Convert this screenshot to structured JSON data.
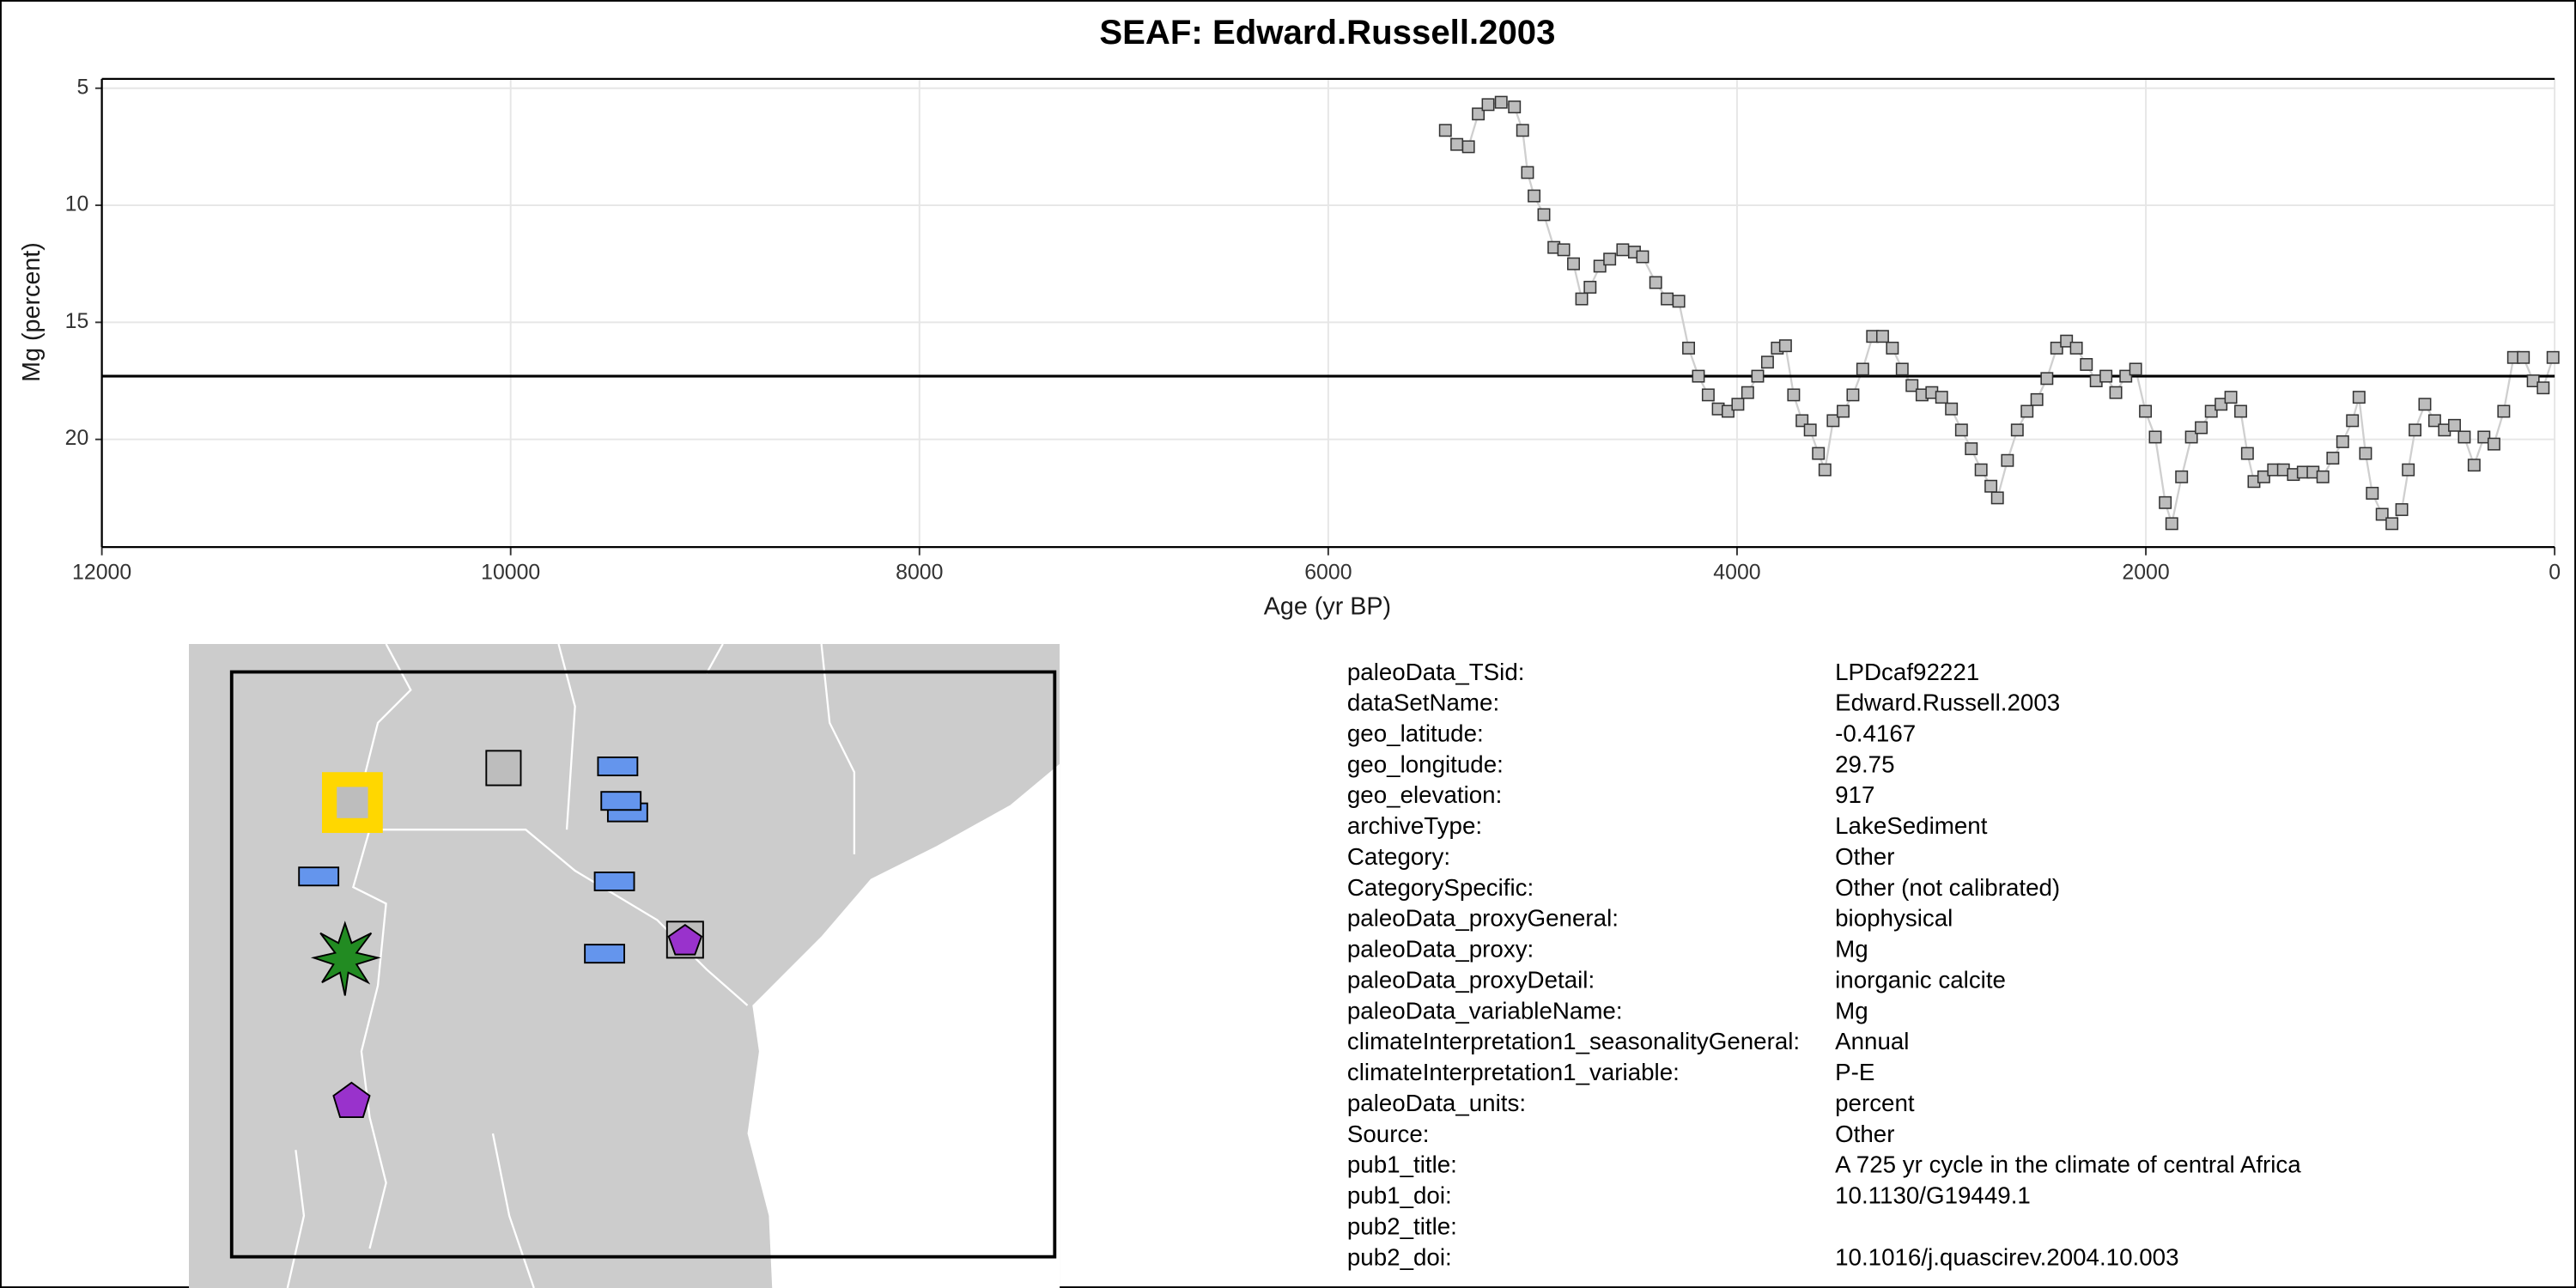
{
  "chart_data": {
    "type": "line",
    "title": "SEAF: Edward.Russell.2003",
    "x_label": "Age (yr BP)",
    "y_label": "Mg (percent)",
    "x": [
      5427,
      5371,
      5314,
      5266,
      5218,
      5154,
      5089,
      5049,
      5025,
      4993,
      4945,
      4896,
      4848,
      4800,
      4760,
      4719,
      4671,
      4623,
      4559,
      4502,
      4462,
      4398,
      4342,
      4285,
      4237,
      4189,
      4141,
      4092,
      4044,
      3996,
      3948,
      3899,
      3851,
      3803,
      3763,
      3723,
      3682,
      3642,
      3602,
      3570,
      3530,
      3481,
      3433,
      3385,
      3337,
      3288,
      3240,
      3192,
      3144,
      3095,
      3047,
      2999,
      2951,
      2902,
      2854,
      2806,
      2758,
      2726,
      2677,
      2629,
      2581,
      2533,
      2484,
      2436,
      2388,
      2340,
      2291,
      2243,
      2195,
      2147,
      2098,
      2050,
      2002,
      1954,
      1905,
      1873,
      1825,
      1777,
      1729,
      1680,
      1632,
      1584,
      1536,
      1503,
      1471,
      1423,
      1375,
      1327,
      1278,
      1230,
      1182,
      1134,
      1085,
      1037,
      989,
      957,
      925,
      892,
      844,
      796,
      748,
      716,
      683,
      635,
      587,
      539,
      490,
      442,
      394,
      346,
      297,
      249,
      201,
      153,
      105,
      56,
      8
    ],
    "values": [
      6.8,
      7.4,
      7.5,
      6.1,
      5.7,
      5.6,
      5.8,
      6.8,
      8.6,
      9.6,
      10.4,
      11.8,
      11.9,
      12.5,
      14.0,
      13.5,
      12.6,
      12.3,
      11.9,
      12.0,
      12.2,
      13.3,
      14.0,
      14.1,
      16.1,
      17.3,
      18.1,
      18.7,
      18.8,
      18.5,
      18.0,
      17.3,
      16.7,
      16.1,
      16.0,
      18.1,
      19.2,
      19.6,
      20.6,
      21.3,
      19.2,
      18.8,
      18.1,
      17.0,
      15.6,
      15.6,
      16.1,
      17.0,
      17.7,
      18.1,
      18.0,
      18.2,
      18.7,
      19.6,
      20.4,
      21.3,
      22.0,
      22.5,
      20.9,
      19.6,
      18.8,
      18.3,
      17.4,
      16.1,
      15.8,
      16.1,
      16.8,
      17.5,
      17.3,
      18.0,
      17.3,
      17.0,
      18.8,
      19.9,
      22.7,
      23.6,
      21.6,
      19.9,
      19.5,
      18.8,
      18.5,
      18.2,
      18.8,
      20.6,
      21.8,
      21.6,
      21.3,
      21.3,
      21.5,
      21.4,
      21.4,
      21.6,
      20.8,
      20.1,
      19.2,
      18.2,
      20.6,
      22.3,
      23.2,
      23.6,
      23.0,
      21.3,
      19.6,
      18.5,
      19.2,
      19.6,
      19.4,
      19.9,
      21.1,
      19.9,
      20.2,
      18.8,
      16.5,
      16.5,
      17.5,
      17.8,
      16.5
    ],
    "color": "#bdbdbd",
    "line_color": "#cfcfcf",
    "xlim": [
      12000,
      0
    ],
    "ylim": [
      24.6,
      4.6
    ],
    "xticks": [
      12000,
      10000,
      8000,
      6000,
      4000,
      2000,
      0
    ],
    "yticks": [
      5,
      10,
      15,
      20
    ],
    "hline": 17.3,
    "grid": true
  },
  "metadata": {
    "rows": [
      {
        "key": "paleoData_TSid:",
        "value": "LPDcaf92221"
      },
      {
        "key": "dataSetName:",
        "value": "Edward.Russell.2003"
      },
      {
        "key": "geo_latitude:",
        "value": "-0.4167"
      },
      {
        "key": "geo_longitude:",
        "value": "29.75"
      },
      {
        "key": "geo_elevation:",
        "value": "917"
      },
      {
        "key": "archiveType:",
        "value": "LakeSediment"
      },
      {
        "key": "Category:",
        "value": "Other"
      },
      {
        "key": "CategorySpecific:",
        "value": "Other (not calibrated)"
      },
      {
        "key": "paleoData_proxyGeneral:",
        "value": "biophysical"
      },
      {
        "key": "paleoData_proxy:",
        "value": "Mg"
      },
      {
        "key": "paleoData_proxyDetail:",
        "value": "inorganic calcite"
      },
      {
        "key": "paleoData_variableName:",
        "value": "Mg"
      },
      {
        "key": "climateInterpretation1_seasonalityGeneral:",
        "value": "Annual"
      },
      {
        "key": "climateInterpretation1_variable:",
        "value": "P-E"
      },
      {
        "key": "paleoData_units:",
        "value": "percent"
      },
      {
        "key": "Source:",
        "value": "Other"
      },
      {
        "key": "pub1_title:",
        "value": "A 725 yr cycle in the climate of central Africa"
      },
      {
        "key": "pub1_doi:",
        "value": "10.1130/G19449.1"
      },
      {
        "key": "pub2_title:"
      },
      {
        "key": "pub2_doi:",
        "value": "10.1016/j.quascirev.2004.10.003"
      }
    ]
  }
}
